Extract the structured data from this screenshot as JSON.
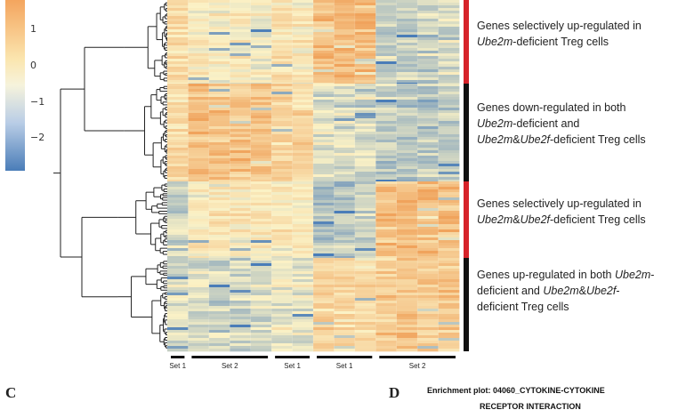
{
  "chart_data": {
    "type": "heatmap",
    "title": "",
    "color_scale": {
      "ticks": [
        "1",
        "0",
        "−1",
        "−2"
      ],
      "tick_values": [
        1,
        0,
        -1,
        -2
      ],
      "range": [
        -2.6,
        2.1
      ],
      "colors": {
        "high": "#f0a35c",
        "mid": "#fbf2c6",
        "low": "#4a7db8"
      }
    },
    "column_groups": [
      {
        "label": "Set 1",
        "columns": 1
      },
      {
        "label": "Set 2",
        "columns": 4
      },
      {
        "label": "Set 1",
        "columns": 2
      },
      {
        "label": "Set 1",
        "columns": 3
      },
      {
        "label": "Set 2",
        "columns": 4
      }
    ],
    "row_clusters": [
      {
        "name": "Genes selectively up-regulated in Ube2m-deficient Treg cells",
        "bar_color": "#d6232a",
        "profile": [
          0.5,
          0.1,
          0.0,
          0.1,
          -0.1,
          0.3,
          0.2,
          1.4,
          1.5,
          1.6,
          -0.8,
          -0.9,
          -0.8,
          -0.7
        ]
      },
      {
        "name": "Genes down-regulated in both Ube2m-deficient and Ube2m&Ube2f-deficient Treg cells",
        "bar_color": "#111111",
        "profile": [
          0.6,
          1.3,
          1.2,
          1.2,
          1.1,
          0.8,
          0.7,
          -0.4,
          -0.5,
          -0.6,
          -0.9,
          -1.0,
          -1.0,
          -0.9
        ]
      },
      {
        "name": "Genes selectively up-regulated in Ube2m&Ube2f-deficient Treg cells",
        "bar_color": "#d6232a",
        "profile": [
          -0.6,
          0.2,
          0.3,
          0.2,
          0.3,
          0.2,
          0.1,
          -1.2,
          -0.9,
          -0.8,
          1.4,
          1.5,
          1.4,
          1.3
        ]
      },
      {
        "name": "Genes up-regulated in both Ube2m-deficient and Ube2m&Ube2f-deficient Treg cells",
        "bar_color": "#111111",
        "profile": [
          -0.4,
          -0.5,
          -0.6,
          -0.5,
          -0.5,
          -0.2,
          -0.3,
          0.9,
          0.8,
          0.7,
          1.0,
          1.1,
          1.0,
          1.1
        ]
      }
    ]
  },
  "cluster_text": [
    {
      "lines": [
        [
          [
            "Genes selectively up-regulated in",
            false
          ]
        ],
        [
          [
            "Ube2m",
            true
          ],
          [
            "-deficient Treg cells",
            false
          ]
        ]
      ]
    },
    {
      "lines": [
        [
          [
            "Genes down-regulated in both",
            false
          ]
        ],
        [
          [
            "Ube2m",
            true
          ],
          [
            "-deficient and",
            false
          ]
        ],
        [
          [
            "Ube2m",
            true
          ],
          [
            "&",
            false
          ],
          [
            "Ube2f",
            true
          ],
          [
            "-deficient Treg cells",
            false
          ]
        ]
      ]
    },
    {
      "lines": [
        [
          [
            "Genes selectively up-regulated in",
            false
          ]
        ],
        [
          [
            "Ube2m",
            true
          ],
          [
            "&",
            false
          ],
          [
            "Ube2f",
            true
          ],
          [
            "-deficient Treg cells",
            false
          ]
        ]
      ]
    },
    {
      "lines": [
        [
          [
            "Genes up-regulated in both ",
            false
          ],
          [
            "Ube2m",
            true
          ],
          [
            "-",
            false
          ]
        ],
        [
          [
            "deficient and ",
            false
          ],
          [
            "Ube2m",
            true
          ],
          [
            "&",
            false
          ],
          [
            "Ube2f",
            true
          ],
          [
            "-",
            false
          ]
        ],
        [
          [
            "deficient Treg cells",
            false
          ]
        ]
      ]
    }
  ],
  "panels": {
    "c_letter": "C",
    "d_letter": "D",
    "d_title_line1": "Enrichment plot: 04060_CYTOKINE-CYTOKINE",
    "d_title_line2": "RECEPTOR INTERACTION"
  }
}
